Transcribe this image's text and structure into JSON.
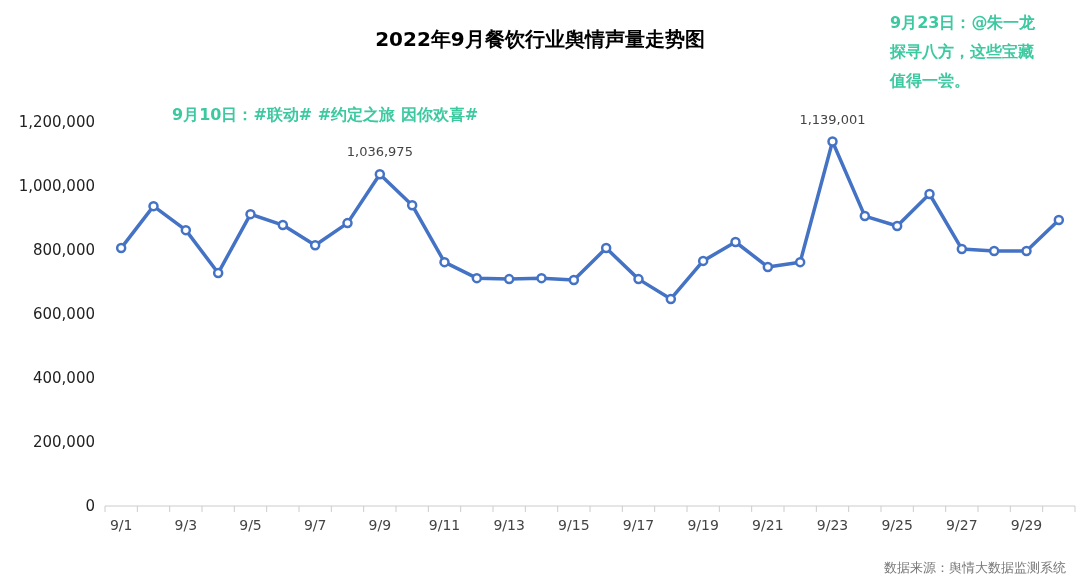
{
  "chart_data": {
    "type": "line",
    "title": "2022年9月餐饮行业舆情声量走势图",
    "categories": [
      "9/1",
      null,
      "9/3",
      null,
      "9/5",
      null,
      "9/7",
      null,
      "9/9",
      null,
      "9/11",
      null,
      "9/13",
      null,
      "9/15",
      null,
      "9/17",
      null,
      "9/19",
      null,
      "9/21",
      null,
      "9/23",
      null,
      "9/25",
      null,
      "9/27",
      null,
      "9/29",
      null
    ],
    "series": [
      {
        "color": "#4472c4",
        "values": [
          806000,
          937000,
          862000,
          728000,
          912000,
          878000,
          815000,
          884000,
          1036975,
          940000,
          762000,
          712000,
          709000,
          712000,
          706000,
          806000,
          709000,
          647000,
          766000,
          825000,
          747000,
          762000,
          1139001,
          906000,
          875000,
          975000,
          803000,
          797000,
          797000,
          894000
        ],
        "value_labels": [
          null,
          null,
          null,
          null,
          null,
          null,
          null,
          null,
          "1,036,975",
          null,
          null,
          null,
          null,
          null,
          null,
          null,
          null,
          null,
          null,
          null,
          null,
          null,
          "1,139,001",
          null,
          null,
          null,
          null,
          null,
          null,
          null
        ]
      }
    ],
    "ylim": [
      0,
      1200000
    ],
    "yticks": [
      {
        "value": 0,
        "label": "0"
      },
      {
        "value": 200000,
        "label": "200,000"
      },
      {
        "value": 400000,
        "label": "400,000"
      },
      {
        "value": 600000,
        "label": "600,000"
      },
      {
        "value": 800000,
        "label": "800,000"
      },
      {
        "value": 1000000,
        "label": "1,000,000"
      },
      {
        "value": 1200000,
        "label": "1,200,000"
      }
    ],
    "grid": false,
    "marker": "circle",
    "line_style": "solid",
    "annotations": [
      "9月10日：#联动# #约定之旅 因你欢喜#",
      "9月23日：@朱一龙探寻八方，这些宝藏值得一尝。",
      "数据来源：舆情大数据监测系统"
    ]
  }
}
